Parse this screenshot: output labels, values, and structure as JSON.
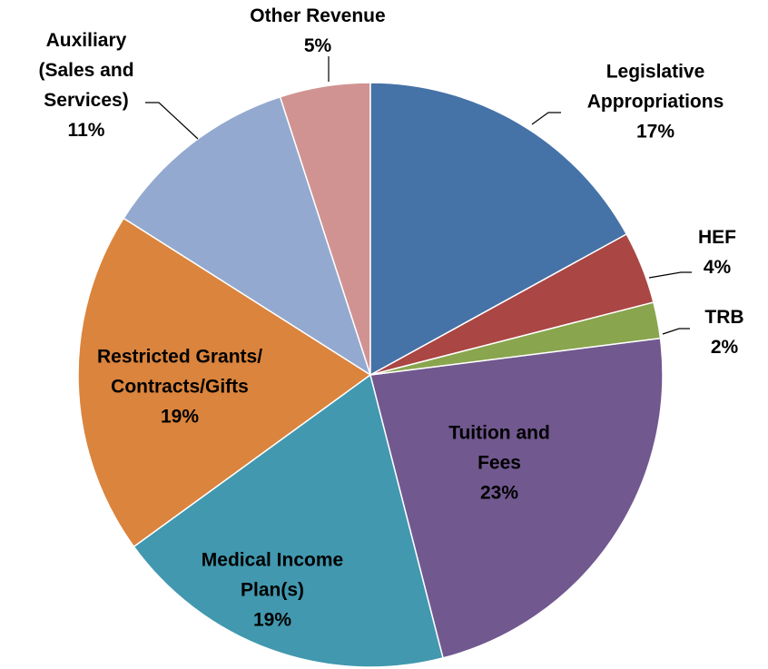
{
  "chart_data": {
    "type": "pie",
    "categories": [
      "Legislative\nAppropriations",
      "HEF",
      "TRB",
      "Tuition and\nFees",
      "Medical Income\nPlan(s)",
      "Restricted Grants/\nContracts/Gifts",
      "Auxiliary\n(Sales and\nServices)",
      "Other Revenue"
    ],
    "values": [
      17,
      4,
      2,
      23,
      19,
      19,
      11,
      5
    ],
    "value_labels": [
      "17%",
      "4%",
      "2%",
      "23%",
      "19%",
      "19%",
      "11%",
      "5%"
    ],
    "colors": [
      "#4572a7",
      "#aa4643",
      "#89a54e",
      "#71588f",
      "#4198af",
      "#db843d",
      "#93a9cf",
      "#d19392"
    ]
  }
}
